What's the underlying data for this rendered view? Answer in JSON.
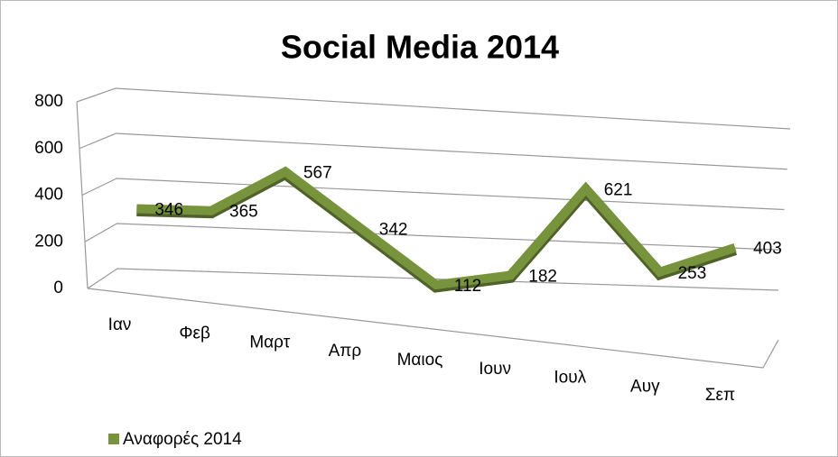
{
  "chart_data": {
    "type": "line",
    "title": "Social Media 2014",
    "categories": [
      "Ιαν",
      "Φεβ",
      "Μαρτ",
      "Απρ",
      "Μαιος",
      "Ιουν",
      "Ιουλ",
      "Αυγ",
      "Σεπ"
    ],
    "series": [
      {
        "name": "Αναφορές 2014",
        "color": "#77933c",
        "values": [
          346,
          365,
          567,
          342,
          112,
          182,
          621,
          253,
          403
        ]
      }
    ],
    "ylim": [
      0,
      800
    ],
    "yticks": [
      0,
      200,
      400,
      600,
      800
    ],
    "grid": true,
    "legend": "bottom-left"
  }
}
